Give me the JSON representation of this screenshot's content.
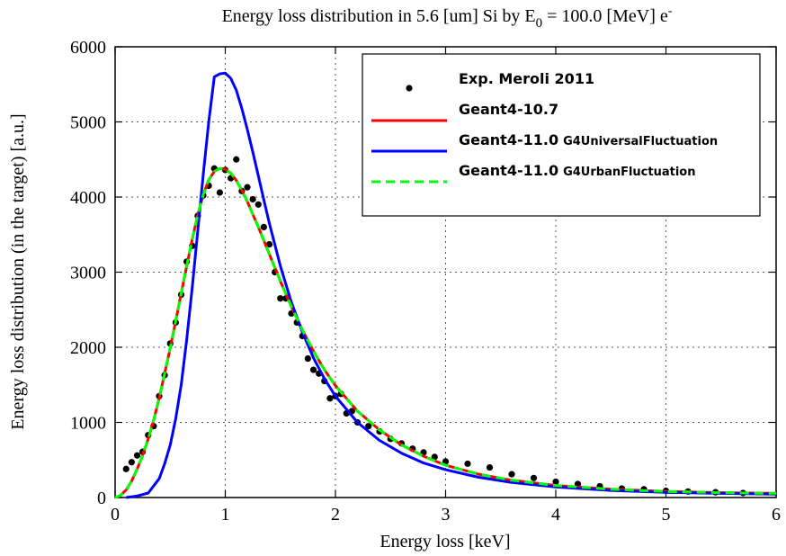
{
  "chart_data": {
    "type": "line",
    "title": {
      "prefix": "Energy loss distribution in 5.6 [um] Si by E",
      "subscript": "0",
      "middle": " = 100.0 [MeV] e",
      "superscript": "-"
    },
    "xlabel": "Energy loss [keV]",
    "ylabel": "Energy loss distribution (in the target) [a.u.]",
    "xlim": [
      0,
      6
    ],
    "ylim": [
      0,
      6000
    ],
    "x_ticks": [
      "0",
      "1",
      "2",
      "3",
      "4",
      "5",
      "6"
    ],
    "y_ticks": [
      "0",
      "1000",
      "2000",
      "3000",
      "4000",
      "5000",
      "6000"
    ],
    "grid": true,
    "legend_position": "top-right",
    "series": [
      {
        "name": "Exp. Meroli 2011",
        "label_main": "Exp. Meroli 2011",
        "label_suffix": "",
        "style": "points",
        "color": "#000000",
        "x": [
          0.1,
          0.15,
          0.2,
          0.25,
          0.3,
          0.35,
          0.4,
          0.45,
          0.5,
          0.55,
          0.6,
          0.65,
          0.7,
          0.75,
          0.8,
          0.85,
          0.9,
          0.95,
          1.0,
          1.05,
          1.1,
          1.15,
          1.2,
          1.25,
          1.3,
          1.35,
          1.4,
          1.45,
          1.5,
          1.55,
          1.6,
          1.65,
          1.7,
          1.75,
          1.8,
          1.85,
          1.9,
          1.95,
          2.0,
          2.05,
          2.1,
          2.15,
          2.2,
          2.3,
          2.4,
          2.5,
          2.6,
          2.7,
          2.8,
          2.9,
          3.0,
          3.2,
          3.4,
          3.6,
          3.8,
          4.0,
          4.2,
          4.4,
          4.6,
          4.8,
          5.0,
          5.2,
          5.45,
          5.7
        ],
        "values": [
          380,
          470,
          560,
          610,
          830,
          950,
          1350,
          1630,
          2050,
          2330,
          2700,
          3140,
          3350,
          3750,
          4020,
          4150,
          4380,
          4060,
          4360,
          4250,
          4500,
          4080,
          4130,
          3970,
          3900,
          3600,
          3370,
          3000,
          2650,
          2650,
          2450,
          2330,
          2150,
          1850,
          1700,
          1650,
          1550,
          1320,
          1350,
          1380,
          1120,
          1150,
          1000,
          950,
          880,
          780,
          720,
          650,
          600,
          540,
          480,
          450,
          400,
          310,
          260,
          210,
          180,
          150,
          120,
          110,
          90,
          80,
          70,
          60
        ]
      },
      {
        "name": "Geant4-10.7",
        "label_main": "Geant4-10.7",
        "label_suffix": "",
        "style": "solid",
        "color": "#ff0000",
        "x": [
          0,
          0.05,
          0.1,
          0.15,
          0.2,
          0.25,
          0.3,
          0.35,
          0.4,
          0.45,
          0.5,
          0.55,
          0.6,
          0.65,
          0.7,
          0.75,
          0.8,
          0.85,
          0.9,
          0.95,
          1.0,
          1.05,
          1.1,
          1.15,
          1.2,
          1.25,
          1.3,
          1.35,
          1.4,
          1.45,
          1.5,
          1.6,
          1.7,
          1.8,
          1.9,
          2.0,
          2.2,
          2.4,
          2.6,
          2.8,
          3.0,
          3.3,
          3.6,
          4.0,
          4.5,
          5.0,
          5.5,
          6.0
        ],
        "values": [
          0,
          30,
          100,
          220,
          380,
          560,
          780,
          1030,
          1320,
          1650,
          1990,
          2350,
          2720,
          3080,
          3440,
          3760,
          4030,
          4230,
          4340,
          4380,
          4370,
          4320,
          4220,
          4090,
          3940,
          3770,
          3600,
          3420,
          3240,
          3060,
          2880,
          2540,
          2230,
          1950,
          1700,
          1490,
          1150,
          900,
          700,
          550,
          430,
          310,
          230,
          160,
          110,
          80,
          65,
          55
        ]
      },
      {
        "name": "Geant4-11.0 G4UniversalFluctuation",
        "label_main": "Geant4-11.0",
        "label_suffix": "G4UniversalFluctuation",
        "style": "solid",
        "color": "#0000ff",
        "x": [
          0.1,
          0.2,
          0.3,
          0.4,
          0.45,
          0.5,
          0.55,
          0.6,
          0.65,
          0.7,
          0.75,
          0.8,
          0.85,
          0.9,
          0.95,
          1.0,
          1.05,
          1.1,
          1.15,
          1.2,
          1.25,
          1.3,
          1.35,
          1.4,
          1.5,
          1.6,
          1.7,
          1.8,
          1.9,
          2.0,
          2.2,
          2.4,
          2.6,
          2.8,
          3.0,
          3.3,
          3.6,
          4.0,
          4.5,
          5.0,
          5.5,
          6.0
        ],
        "values": [
          0,
          20,
          60,
          250,
          450,
          700,
          1050,
          1500,
          2100,
          2800,
          3550,
          4300,
          5000,
          5600,
          5640,
          5650,
          5580,
          5420,
          5180,
          4900,
          4600,
          4280,
          3960,
          3650,
          3080,
          2600,
          2200,
          1860,
          1580,
          1350,
          1000,
          760,
          590,
          460,
          370,
          270,
          200,
          140,
          95,
          70,
          55,
          45
        ]
      },
      {
        "name": "Geant4-11.0 G4UrbanFluctuation",
        "label_main": "Geant4-11.0",
        "label_suffix": "G4UrbanFluctuation",
        "style": "dashed",
        "color": "#00ff00",
        "x": [
          0,
          0.05,
          0.1,
          0.15,
          0.2,
          0.25,
          0.3,
          0.35,
          0.4,
          0.45,
          0.5,
          0.55,
          0.6,
          0.65,
          0.7,
          0.75,
          0.8,
          0.85,
          0.9,
          0.95,
          1.0,
          1.05,
          1.1,
          1.15,
          1.2,
          1.25,
          1.3,
          1.35,
          1.4,
          1.45,
          1.5,
          1.6,
          1.7,
          1.8,
          1.9,
          2.0,
          2.2,
          2.4,
          2.6,
          2.8,
          3.0,
          3.3,
          3.6,
          4.0,
          4.5,
          5.0,
          5.5,
          6.0
        ],
        "values": [
          0,
          30,
          100,
          220,
          380,
          560,
          780,
          1030,
          1320,
          1650,
          1990,
          2350,
          2720,
          3080,
          3440,
          3760,
          4030,
          4230,
          4340,
          4380,
          4370,
          4320,
          4220,
          4090,
          3940,
          3770,
          3600,
          3420,
          3240,
          3060,
          2880,
          2540,
          2230,
          1950,
          1700,
          1490,
          1150,
          900,
          700,
          550,
          430,
          310,
          230,
          160,
          110,
          80,
          65,
          55
        ]
      }
    ]
  }
}
